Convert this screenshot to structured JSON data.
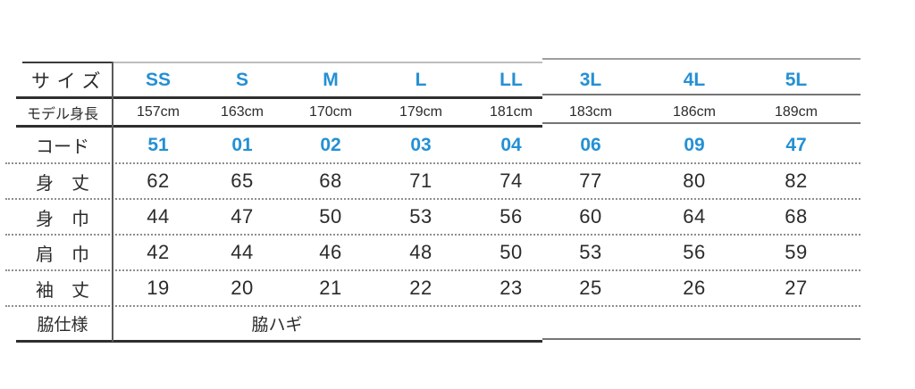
{
  "colors": {
    "accent": "#2490d4",
    "text": "#2b2b2b"
  },
  "table": {
    "size_row": {
      "label": "サイズ",
      "sizes": [
        "SS",
        "S",
        "M",
        "L",
        "LL",
        "3L",
        "4L",
        "5L"
      ]
    },
    "model_height": {
      "label": "モデル身長",
      "values": [
        "157cm",
        "163cm",
        "170cm",
        "179cm",
        "181cm",
        "183cm",
        "186cm",
        "189cm"
      ]
    },
    "code": {
      "label": "コード",
      "values": [
        "51",
        "01",
        "02",
        "03",
        "04",
        "06",
        "09",
        "47"
      ]
    },
    "measurements": [
      {
        "label": "身　丈",
        "values": [
          "62",
          "65",
          "68",
          "71",
          "74",
          "77",
          "80",
          "82"
        ]
      },
      {
        "label": "身　巾",
        "values": [
          "44",
          "47",
          "50",
          "53",
          "56",
          "60",
          "64",
          "68"
        ]
      },
      {
        "label": "肩　巾",
        "values": [
          "42",
          "44",
          "46",
          "48",
          "50",
          "53",
          "56",
          "59"
        ]
      },
      {
        "label": "袖　丈",
        "values": [
          "19",
          "20",
          "21",
          "22",
          "23",
          "25",
          "26",
          "27"
        ]
      }
    ],
    "side_spec": {
      "label": "脇仕様",
      "value": "脇ハギ"
    }
  }
}
